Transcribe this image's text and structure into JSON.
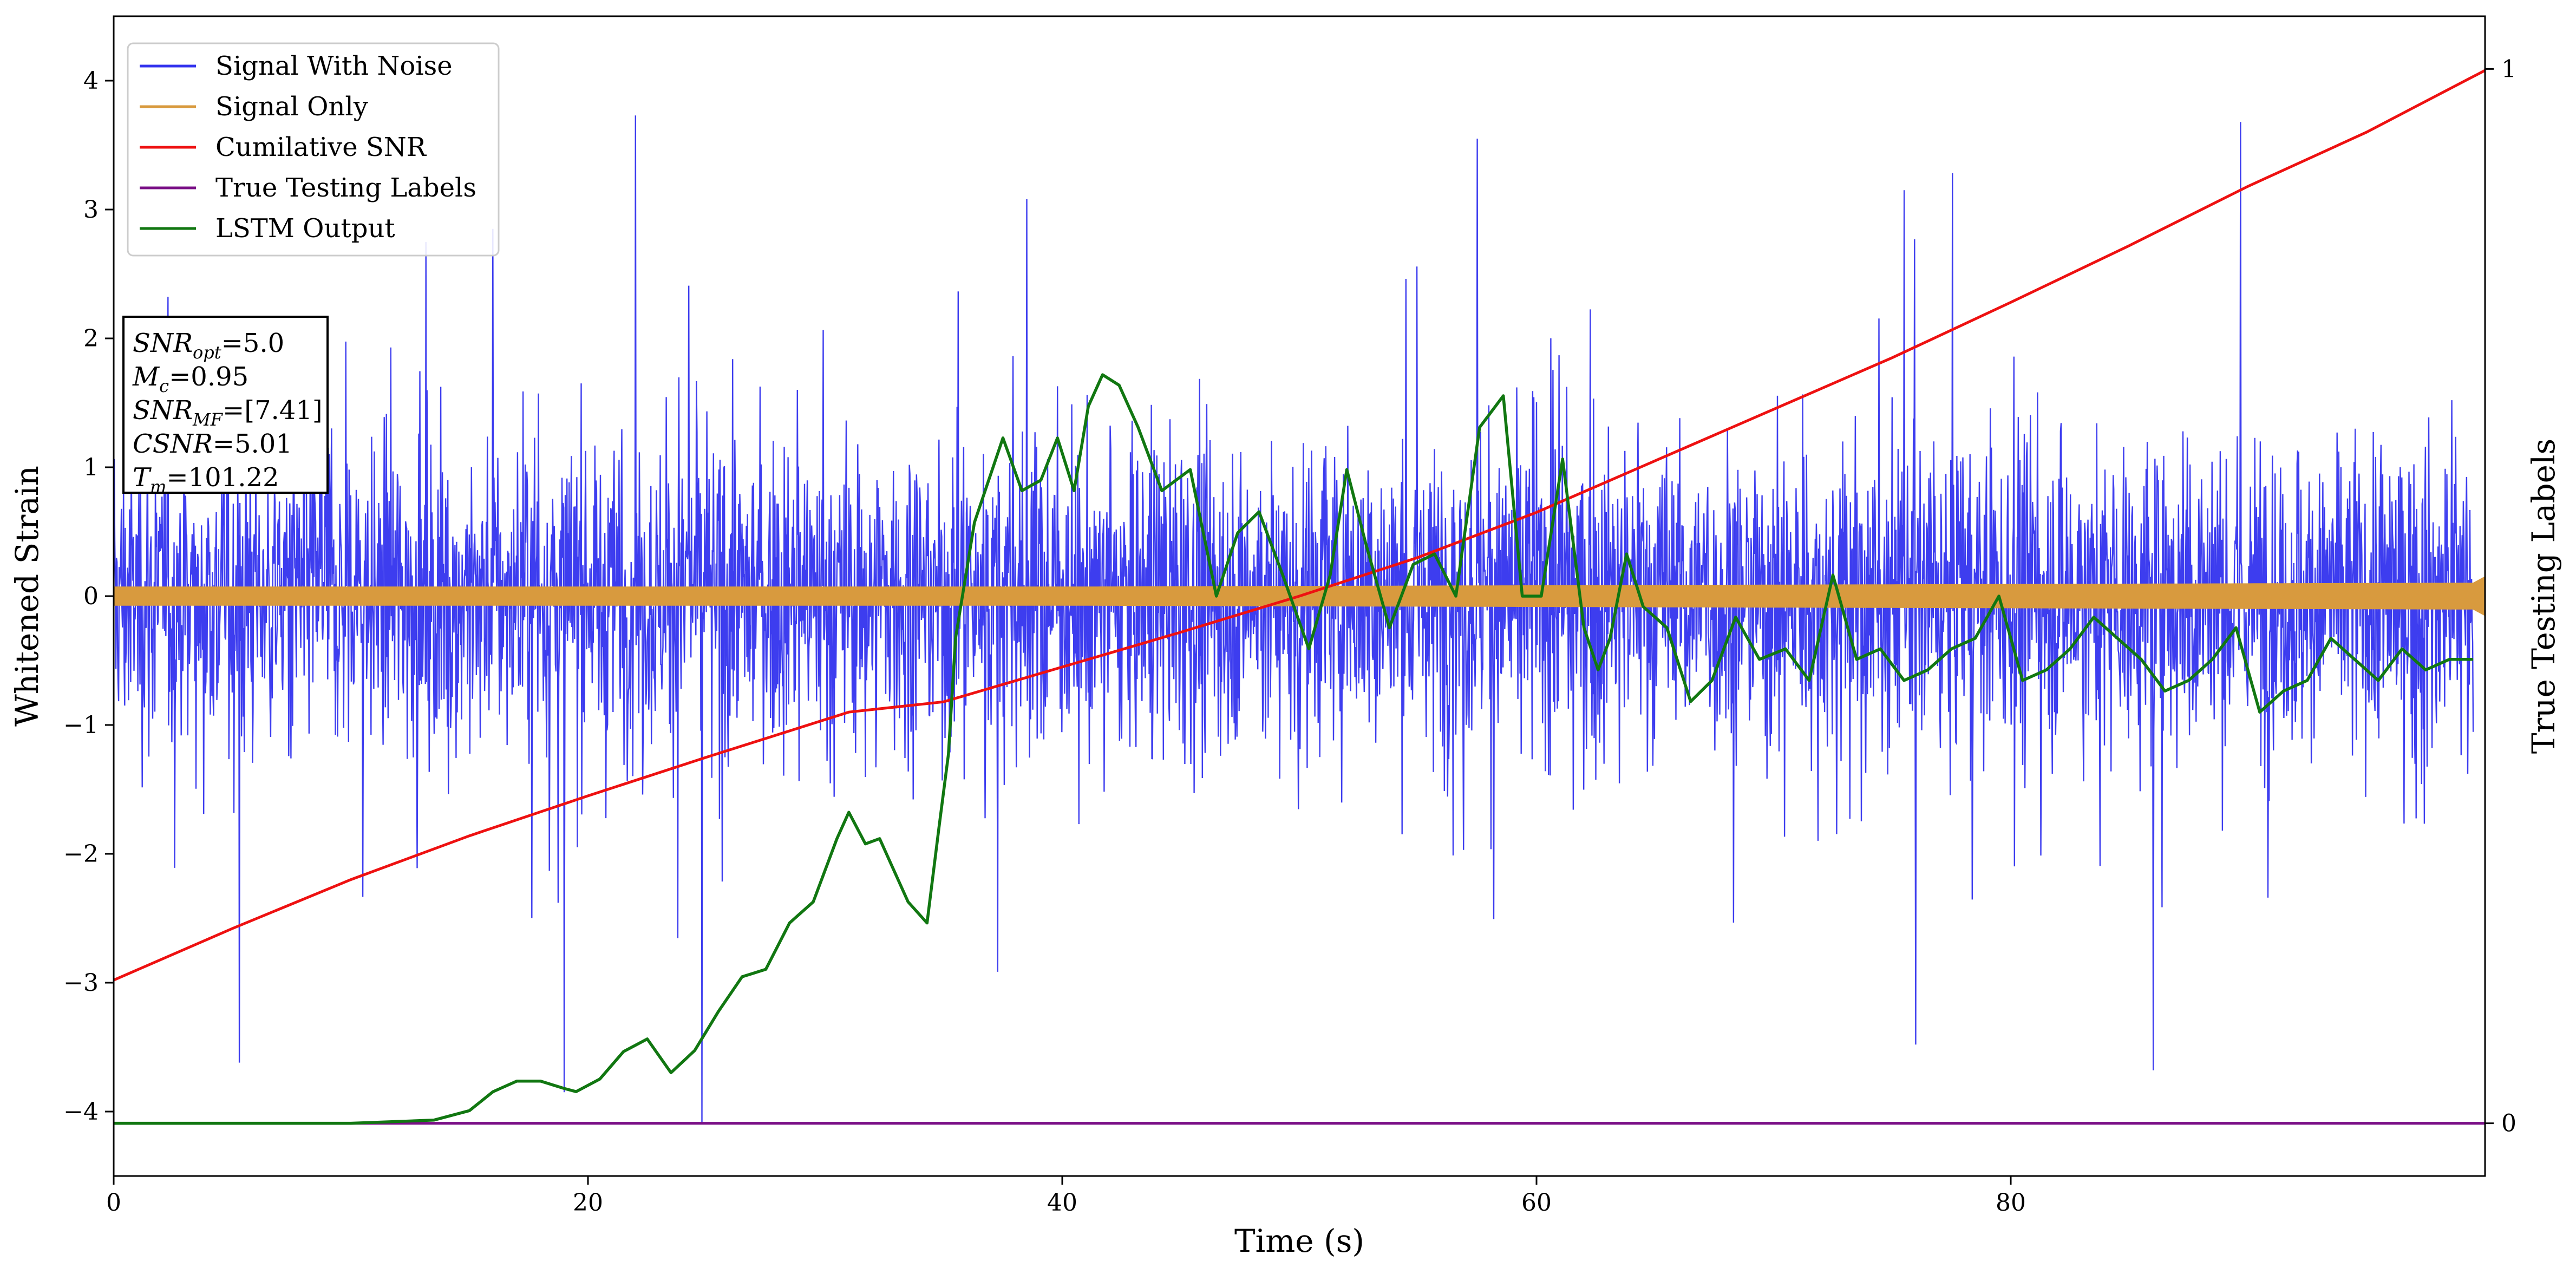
{
  "chart_data": {
    "type": "line",
    "xlabel": "Time (s)",
    "ylabel": "Whitened Strain",
    "y2label": "True Testing Labels",
    "xlim": [
      0,
      100
    ],
    "ylim": [
      -4.5,
      4.5
    ],
    "y2lim": [
      -0.05,
      1.05
    ],
    "xticks": [
      0,
      20,
      40,
      60,
      80
    ],
    "yticks": [
      -4,
      -3,
      -2,
      -1,
      0,
      1,
      2,
      3,
      4
    ],
    "y2ticks": [
      0,
      1
    ],
    "grid": false,
    "legend_position": "top-left",
    "colors": {
      "noise": "#3333ee",
      "signal": "#d89a3e",
      "csnr": "#ee1111",
      "labels": "#7a0f86",
      "lstm": "#117711"
    },
    "series": [
      {
        "name": "Signal With Noise",
        "axis": "left",
        "kind": "noise",
        "x_range": [
          0,
          99.5
        ],
        "typical_range": [
          -1.5,
          1.5
        ],
        "spike_range": [
          -4.1,
          3.73
        ],
        "extremes": [
          {
            "x": 5.3,
            "y": -3.62
          },
          {
            "x": 16.0,
            "y": 2.85
          },
          {
            "x": 22.0,
            "y": 3.73
          },
          {
            "x": 19.0,
            "y": -3.85
          },
          {
            "x": 24.8,
            "y": -4.1
          },
          {
            "x": 38.5,
            "y": 3.08
          },
          {
            "x": 57.5,
            "y": 3.55
          },
          {
            "x": 76.0,
            "y": -3.48
          },
          {
            "x": 75.5,
            "y": 3.15
          },
          {
            "x": 86.0,
            "y": -3.68
          },
          {
            "x": 89.7,
            "y": 3.68
          }
        ]
      },
      {
        "name": "Signal Only",
        "axis": "left",
        "kind": "band",
        "x": [
          0,
          20,
          40,
          60,
          80,
          99.5,
          100
        ],
        "amplitude": [
          0.07,
          0.07,
          0.07,
          0.08,
          0.09,
          0.1,
          0.15
        ]
      },
      {
        "name": "Cumilative SNR",
        "axis": "left",
        "x": [
          0,
          5,
          10,
          15,
          20,
          25,
          31,
          35,
          40,
          45,
          50,
          55,
          60,
          65,
          70,
          75,
          80,
          85,
          90,
          95,
          100
        ],
        "y": [
          -2.98,
          -2.58,
          -2.2,
          -1.86,
          -1.55,
          -1.25,
          -0.9,
          -0.82,
          -0.55,
          -0.28,
          0.0,
          0.3,
          0.65,
          1.05,
          1.45,
          1.85,
          2.28,
          2.72,
          3.18,
          3.6,
          4.08
        ]
      },
      {
        "name": "True Testing Labels",
        "axis": "right",
        "x": [
          0,
          100
        ],
        "y": [
          0,
          0
        ]
      },
      {
        "name": "LSTM Output",
        "axis": "right",
        "x": [
          0,
          10,
          13.5,
          15,
          16,
          17,
          18,
          19,
          19.5,
          20.5,
          21.5,
          22.5,
          23.5,
          24.5,
          25.5,
          26.5,
          27.5,
          28.5,
          29.5,
          30.5,
          31,
          31.7,
          32.3,
          33.5,
          34.3,
          34.8,
          35.2,
          35.5,
          36.3,
          37.5,
          38.3,
          39.1,
          39.8,
          40.5,
          41.1,
          41.7,
          42.4,
          43.2,
          44.2,
          45.4,
          46.5,
          47.4,
          48.3,
          49.3,
          50.4,
          51.3,
          52.0,
          52.8,
          53.8,
          54.8,
          55.7,
          56.6,
          57.6,
          58.6,
          59.4,
          60.2,
          61.1,
          62.0,
          62.6,
          63.1,
          63.8,
          64.5,
          65.5,
          66.5,
          67.4,
          68.4,
          69.4,
          70.5,
          71.5,
          72.5,
          73.5,
          74.5,
          75.5,
          76.5,
          77.5,
          78.5,
          79.5,
          80.5,
          81.5,
          82.5,
          83.5,
          84.5,
          85.5,
          86.5,
          87.5,
          88.5,
          89.5,
          90.5,
          91.5,
          92.5,
          93.5,
          94.5,
          95.5,
          96.5,
          97.5,
          98.5,
          99.5
        ],
        "y": [
          0.0,
          0.0,
          0.003,
          0.012,
          0.03,
          0.04,
          0.04,
          0.033,
          0.03,
          0.042,
          0.068,
          0.08,
          0.048,
          0.069,
          0.106,
          0.139,
          0.146,
          0.19,
          0.21,
          0.27,
          0.295,
          0.265,
          0.27,
          0.21,
          0.19,
          0.28,
          0.35,
          0.46,
          0.57,
          0.65,
          0.6,
          0.61,
          0.65,
          0.6,
          0.68,
          0.71,
          0.7,
          0.66,
          0.6,
          0.62,
          0.5,
          0.56,
          0.58,
          0.52,
          0.45,
          0.52,
          0.62,
          0.55,
          0.47,
          0.53,
          0.54,
          0.5,
          0.66,
          0.69,
          0.5,
          0.5,
          0.63,
          0.47,
          0.43,
          0.46,
          0.54,
          0.49,
          0.47,
          0.4,
          0.42,
          0.48,
          0.44,
          0.45,
          0.42,
          0.52,
          0.44,
          0.45,
          0.42,
          0.43,
          0.45,
          0.46,
          0.5,
          0.42,
          0.43,
          0.45,
          0.48,
          0.46,
          0.44,
          0.41,
          0.42,
          0.44,
          0.47,
          0.39,
          0.41,
          0.42,
          0.46,
          0.44,
          0.42,
          0.45,
          0.43,
          0.44,
          0.44
        ]
      }
    ],
    "legend": [
      "Signal With Noise",
      "Signal Only",
      "Cumilative SNR",
      "True Testing Labels",
      "LSTM Output"
    ],
    "annotation": {
      "lines": [
        {
          "var": "SNR",
          "sub": "opt",
          "value": "=5.0"
        },
        {
          "var": "M",
          "sub": "c",
          "value": "=0.95"
        },
        {
          "var": "SNR",
          "sub": "MF",
          "value": "=[7.41]"
        },
        {
          "var": "CSNR",
          "sub": "",
          "value": "=5.01"
        },
        {
          "var": "T",
          "sub": "m",
          "value": "=101.22"
        }
      ]
    }
  }
}
